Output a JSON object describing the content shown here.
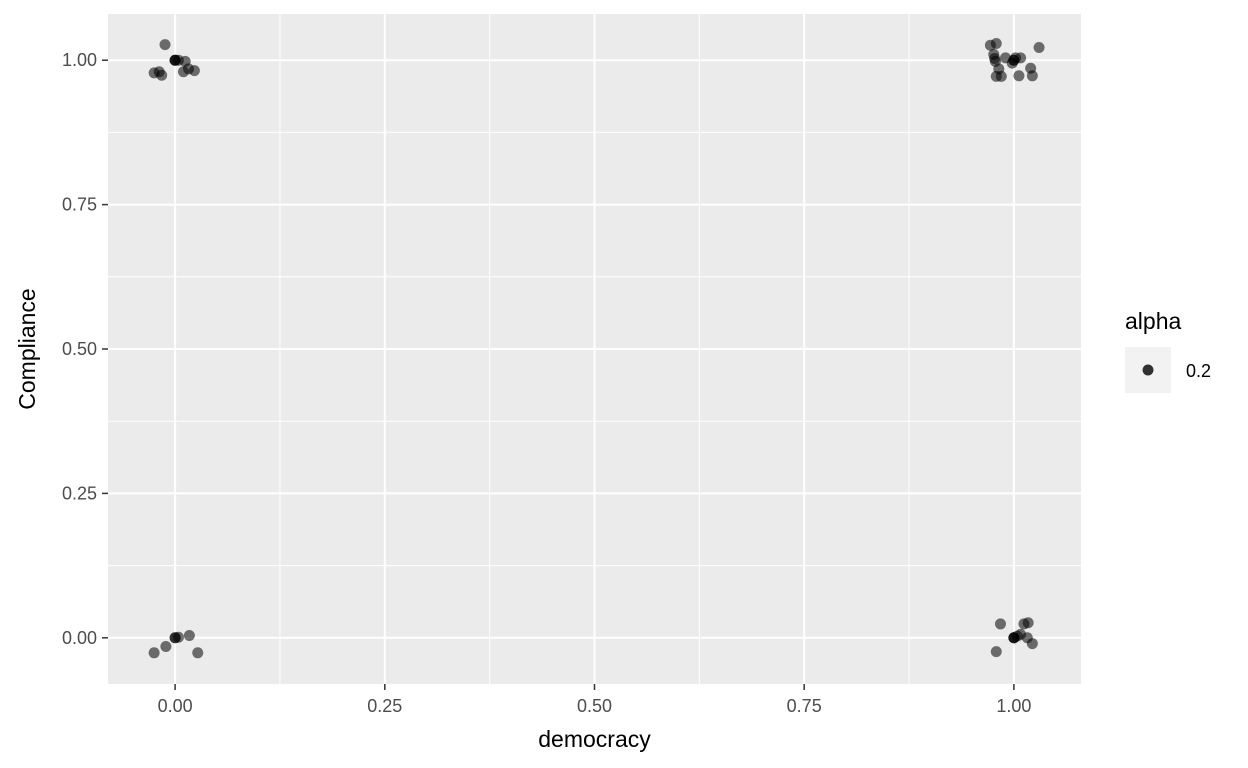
{
  "chart_data": {
    "type": "scatter",
    "title": "",
    "xlabel": "democracy",
    "ylabel": "Compliance",
    "xlim": [
      -0.08,
      1.08
    ],
    "ylim": [
      -0.08,
      1.08
    ],
    "x_ticks": [
      0,
      0.25,
      0.5,
      0.75,
      1
    ],
    "x_tick_labels": [
      "0.00",
      "0.25",
      "0.50",
      "0.75",
      "1.00"
    ],
    "y_ticks": [
      0,
      0.25,
      0.5,
      0.75,
      1
    ],
    "y_tick_labels": [
      "0.00",
      "0.25",
      "0.50",
      "0.75",
      "1.00"
    ],
    "grid": true,
    "legend": {
      "title": "alpha",
      "position": "right",
      "entries": [
        {
          "label": "0.2"
        }
      ]
    },
    "point_color": "#000000",
    "point_opacity": 0.55,
    "panel_background": "#ebebeb",
    "grid_color": "#ffffff",
    "points": [
      {
        "x": 0.0,
        "y": 1.0
      },
      {
        "x": 0.0,
        "y": 1.0
      },
      {
        "x": 0.0,
        "y": 1.0
      },
      {
        "x": -0.012,
        "y": 1.027
      },
      {
        "x": -0.025,
        "y": 0.978
      },
      {
        "x": -0.019,
        "y": 0.98
      },
      {
        "x": -0.016,
        "y": 0.974
      },
      {
        "x": 0.012,
        "y": 0.998
      },
      {
        "x": 0.01,
        "y": 0.98
      },
      {
        "x": 0.016,
        "y": 0.985
      },
      {
        "x": 0.023,
        "y": 0.982
      },
      {
        "x": 0.004,
        "y": 1.0
      },
      {
        "x": 0.0,
        "y": 0.0
      },
      {
        "x": 0.0,
        "y": 0.0
      },
      {
        "x": 0.004,
        "y": 0.001
      },
      {
        "x": 0.017,
        "y": 0.004
      },
      {
        "x": -0.011,
        "y": -0.015
      },
      {
        "x": -0.025,
        "y": -0.026
      },
      {
        "x": 0.027,
        "y": -0.026
      },
      {
        "x": 1.0,
        "y": 1.0
      },
      {
        "x": 1.0,
        "y": 1.0
      },
      {
        "x": 0.972,
        "y": 1.026
      },
      {
        "x": 0.979,
        "y": 1.029
      },
      {
        "x": 0.976,
        "y": 1.01
      },
      {
        "x": 0.977,
        "y": 1.003
      },
      {
        "x": 0.978,
        "y": 0.998
      },
      {
        "x": 0.982,
        "y": 0.985
      },
      {
        "x": 0.979,
        "y": 0.972
      },
      {
        "x": 0.985,
        "y": 0.972
      },
      {
        "x": 0.99,
        "y": 1.004
      },
      {
        "x": 0.998,
        "y": 0.995
      },
      {
        "x": 1.002,
        "y": 1.004
      },
      {
        "x": 1.008,
        "y": 1.004
      },
      {
        "x": 1.006,
        "y": 0.973
      },
      {
        "x": 1.02,
        "y": 0.986
      },
      {
        "x": 1.022,
        "y": 0.973
      },
      {
        "x": 1.03,
        "y": 1.022
      },
      {
        "x": 1.0,
        "y": 0.0
      },
      {
        "x": 1.0,
        "y": 0.0
      },
      {
        "x": 1.0,
        "y": 0.0
      },
      {
        "x": 1.004,
        "y": 0.003
      },
      {
        "x": 1.008,
        "y": 0.006
      },
      {
        "x": 0.984,
        "y": 0.024
      },
      {
        "x": 1.012,
        "y": 0.024
      },
      {
        "x": 1.017,
        "y": 0.026
      },
      {
        "x": 1.016,
        "y": 0.0
      },
      {
        "x": 1.022,
        "y": -0.01
      },
      {
        "x": 0.979,
        "y": -0.024
      }
    ]
  }
}
